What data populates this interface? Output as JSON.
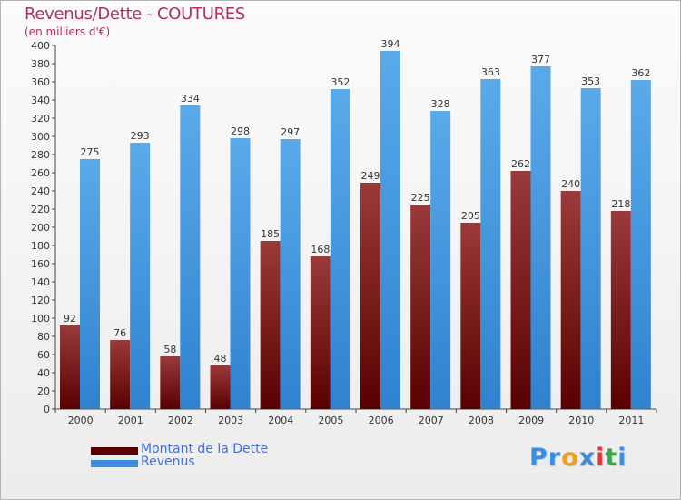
{
  "chart_data": {
    "type": "bar",
    "title": "Revenus/Dette - COUTURES",
    "subtitle": "(en milliers d'€)",
    "categories": [
      "2000",
      "2001",
      "2002",
      "2003",
      "2004",
      "2005",
      "2006",
      "2007",
      "2008",
      "2009",
      "2010",
      "2011"
    ],
    "series": [
      {
        "name": "Montant de la Dette",
        "values": [
          92,
          76,
          58,
          48,
          185,
          168,
          249,
          225,
          205,
          262,
          240,
          218
        ],
        "color_top": "#9a3a3a",
        "color_bottom": "#5a0000"
      },
      {
        "name": "Revenus",
        "values": [
          275,
          293,
          334,
          298,
          297,
          352,
          394,
          328,
          363,
          377,
          353,
          362
        ],
        "color_top": "#5aaaea",
        "color_bottom": "#2f82cf"
      }
    ],
    "ylim": [
      0,
      400
    ],
    "y_tick_step": 20,
    "grid": false,
    "legend_position": "bottom-left",
    "legend_color": "#3e6fe8",
    "title_color": "#b0305a"
  },
  "logo": {
    "letters": [
      "P",
      "r",
      "o",
      "x",
      "i",
      "t",
      "i"
    ],
    "colors": [
      "#3a8de0",
      "#3a8de0",
      "#f0a020",
      "#3a8de0",
      "#e23a3a",
      "#3aa844",
      "#3a8de0"
    ]
  }
}
